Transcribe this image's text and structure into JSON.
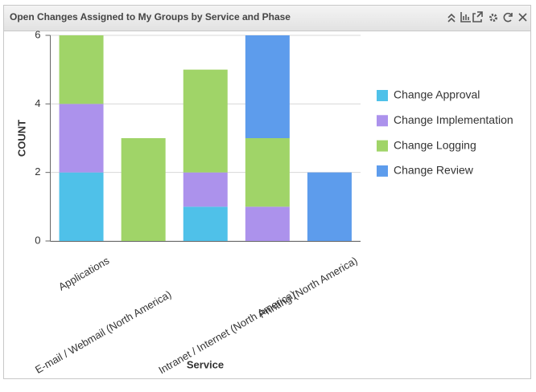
{
  "chart_data": {
    "type": "stacked-bar",
    "title": "Open Changes Assigned to My Groups by Service and Phase",
    "x_label": "Service",
    "y_label": "COUNT",
    "categories": [
      "Applications",
      "E-mail / Webmail (North America)",
      null,
      "Intranet / Internet (North America)",
      "Printing (North America)"
    ],
    "series": [
      {
        "name": "Change Approval",
        "color": "#4fc1e9",
        "values": [
          2,
          0,
          1,
          0,
          0
        ]
      },
      {
        "name": "Change Implementation",
        "color": "#ac92ec",
        "values": [
          2,
          0,
          1,
          1,
          0
        ]
      },
      {
        "name": "Change Logging",
        "color": "#a0d468",
        "values": [
          2,
          3,
          3,
          2,
          0
        ]
      },
      {
        "name": "Change Review",
        "color": "#5d9cec",
        "values": [
          0,
          0,
          0,
          3,
          2
        ]
      }
    ],
    "ylim": [
      0,
      6
    ],
    "yticks": [
      0,
      2,
      4,
      6
    ],
    "grid": true,
    "legend": "right"
  }
}
